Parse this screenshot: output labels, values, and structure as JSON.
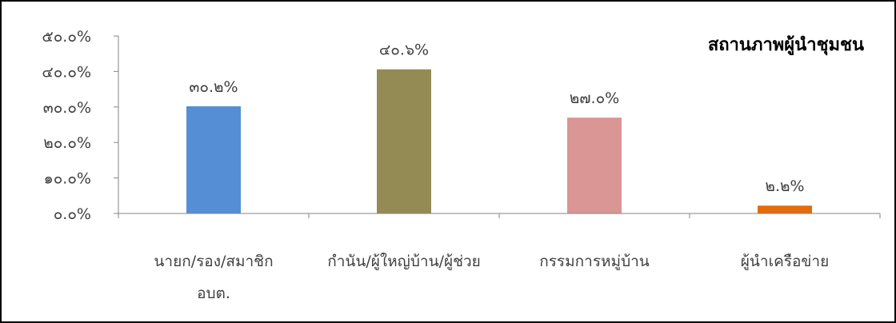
{
  "chart_data": {
    "type": "bar",
    "title": "สถานภาพผู้นำชุมชน",
    "xlabel": "",
    "ylabel": "",
    "ylim": [
      0,
      50
    ],
    "yticks": [
      0,
      10,
      20,
      30,
      40,
      50
    ],
    "ytick_labels": [
      "๐.๐%",
      "๑๐.๐%",
      "๒๐.๐%",
      "๓๐.๐%",
      "๔๐.๐%",
      "๕๐.๐%"
    ],
    "categories": [
      [
        "นายก/รอง/สมาชิก",
        "อบต."
      ],
      [
        "กำนัน/ผู้ใหญ่บ้าน/ผู้ช่วย"
      ],
      [
        "กรรมการหมู่บ้าน"
      ],
      [
        "ผู้นำเครือข่าย"
      ]
    ],
    "values": [
      30.2,
      40.6,
      27.0,
      2.2
    ],
    "data_labels": [
      "๓๐.๒%",
      "๔๐.๖%",
      "๒๗.๐%",
      "๒.๒%"
    ],
    "colors": [
      "#558ed5",
      "#948a54",
      "#d99694",
      "#e46c0a"
    ],
    "legend": "none",
    "grid": false
  }
}
